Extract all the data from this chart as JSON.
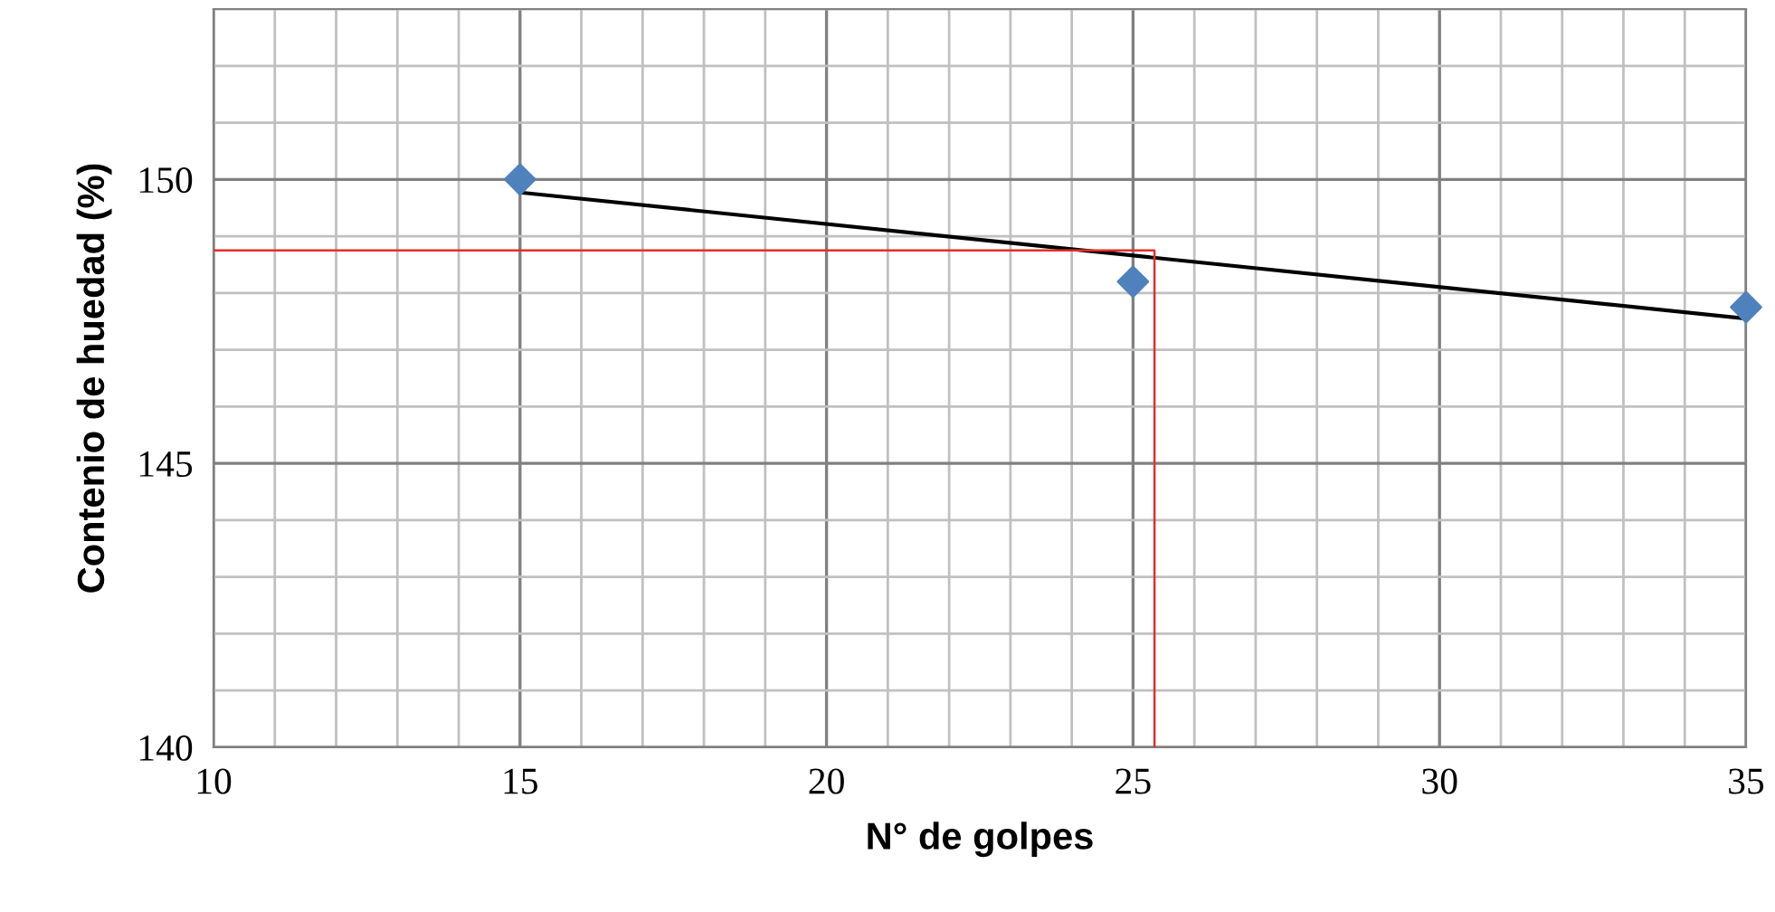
{
  "chart_data": {
    "type": "scatter",
    "xlabel": "N° de golpes",
    "ylabel": "Contenio de huedad (%)",
    "xlim": [
      10,
      35
    ],
    "ylim": [
      140,
      153
    ],
    "xticks": [
      10,
      {
        "value": 11,
        "label": null
      },
      {
        "value": 12,
        "label": null
      },
      {
        "value": 13,
        "label": null
      },
      {
        "value": 14,
        "label": null
      },
      15,
      {
        "value": 16,
        "label": null
      },
      {
        "value": 17,
        "label": null
      },
      {
        "value": 18,
        "label": null
      },
      {
        "value": 19,
        "label": null
      },
      20,
      {
        "value": 21,
        "label": null
      },
      {
        "value": 22,
        "label": null
      },
      {
        "value": 23,
        "label": null
      },
      {
        "value": 24,
        "label": null
      },
      25,
      {
        "value": 26,
        "label": null
      },
      {
        "value": 27,
        "label": null
      },
      {
        "value": 28,
        "label": null
      },
      {
        "value": 29,
        "label": null
      },
      30,
      {
        "value": 31,
        "label": null
      },
      {
        "value": 32,
        "label": null
      },
      {
        "value": 33,
        "label": null
      },
      {
        "value": 34,
        "label": null
      },
      35
    ],
    "yticks": [
      140,
      {
        "value": 141,
        "label": null
      },
      {
        "value": 142,
        "label": null
      },
      {
        "value": 143,
        "label": null
      },
      {
        "value": 144,
        "label": null
      },
      145,
      {
        "value": 146,
        "label": null
      },
      {
        "value": 147,
        "label": null
      },
      {
        "value": 148,
        "label": null
      },
      {
        "value": 149,
        "label": null
      },
      150,
      {
        "value": 151,
        "label": null
      },
      {
        "value": 152,
        "label": null
      },
      {
        "value": 153,
        "label": null
      }
    ],
    "grid": true,
    "legend": false,
    "series": [
      {
        "color": "#4f81bd",
        "marker": "diamond",
        "x": [
          15,
          25,
          35
        ],
        "values": [
          150,
          148.2,
          147.75
        ]
      },
      {
        "type": "line",
        "color": "#000000",
        "marker": "none",
        "line_style": "solid",
        "x": [
          15,
          35
        ],
        "values": [
          149.77,
          147.55
        ]
      },
      {
        "type": "line",
        "color": "#e0302a",
        "marker": "none",
        "line_style": "solid",
        "x": [
          10,
          25.35,
          25.35
        ],
        "values": [
          148.75,
          148.75,
          140
        ]
      }
    ]
  }
}
